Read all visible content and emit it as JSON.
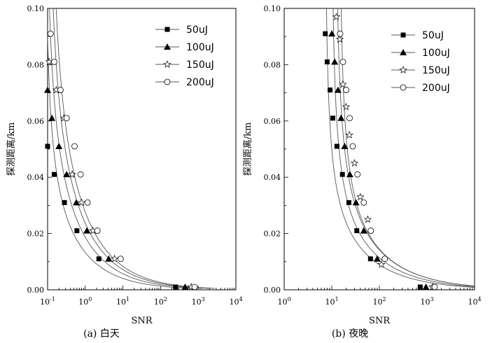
{
  "chart_data": [
    {
      "type": "scatter",
      "caption": "(a) 白天",
      "xlabel": "SNR",
      "ylabel": "探测距离/km",
      "xscale": "log",
      "xlim": [
        0.1,
        10000
      ],
      "ylim": [
        0,
        0.1
      ],
      "xticks": [
        0.1,
        1,
        10,
        100,
        1000,
        10000
      ],
      "xtick_labels": [
        "10-1",
        "100",
        "101",
        "102",
        "103",
        "104"
      ],
      "yticks": [
        0,
        0.02,
        0.04,
        0.06,
        0.08,
        0.1
      ],
      "ytick_labels": [
        "0.00",
        "0.02",
        "0.04",
        "0.06",
        "0.08",
        "0.10"
      ],
      "legend_position": "top-right",
      "series": [
        {
          "name": "50uJ",
          "marker": "square",
          "x": [
            0.1,
            0.15,
            0.28,
            0.6,
            2.3,
            250
          ],
          "y": [
            0.051,
            0.041,
            0.031,
            0.021,
            0.011,
            0.001
          ]
        },
        {
          "name": "100uJ",
          "marker": "triangle",
          "x": [
            0.1,
            0.13,
            0.2,
            0.32,
            0.58,
            1.1,
            4.2,
            450
          ],
          "y": [
            0.071,
            0.061,
            0.051,
            0.041,
            0.031,
            0.021,
            0.011,
            0.001
          ]
        },
        {
          "name": "150uJ",
          "marker": "star",
          "x": [
            0.11,
            0.17,
            0.27,
            0.45,
            0.8,
            1.6,
            6,
            650
          ],
          "y": [
            0.081,
            0.071,
            0.061,
            0.041,
            0.031,
            0.021,
            0.011,
            0.001
          ]
        },
        {
          "name": "200uJ",
          "marker": "circle",
          "x": [
            0.12,
            0.15,
            0.22,
            0.32,
            0.52,
            0.75,
            1.15,
            2.1,
            8.7,
            800
          ],
          "y": [
            0.091,
            0.081,
            0.071,
            0.061,
            0.051,
            0.041,
            0.031,
            0.021,
            0.011,
            0.001
          ]
        }
      ],
      "curve_asymptote": [
        0.08,
        0.08,
        0.09,
        0.1
      ]
    },
    {
      "type": "scatter",
      "caption": "(b) 夜晚",
      "xlabel": "SNR",
      "ylabel": "探测距离/km",
      "xscale": "log",
      "xlim": [
        1,
        10000
      ],
      "ylim": [
        0,
        0.1
      ],
      "xticks": [
        1,
        10,
        100,
        1000,
        10000
      ],
      "xtick_labels": [
        "100",
        "101",
        "102",
        "103",
        "104"
      ],
      "yticks": [
        0,
        0.02,
        0.04,
        0.06,
        0.08,
        0.1
      ],
      "ytick_labels": [
        "0.00",
        "0.02",
        "0.04",
        "0.06",
        "0.08",
        "0.10"
      ],
      "legend_position": "top-right",
      "series": [
        {
          "name": "50uJ",
          "marker": "square",
          "x": [
            7.3,
            8,
            9.2,
            10.5,
            12.8,
            16.7,
            22.8,
            33.5,
            65,
            720
          ],
          "y": [
            0.091,
            0.081,
            0.071,
            0.061,
            0.051,
            0.041,
            0.031,
            0.021,
            0.011,
            0.001
          ]
        },
        {
          "name": "100uJ",
          "marker": "triangle",
          "x": [
            10,
            11.5,
            13.5,
            15.7,
            18.6,
            24,
            32.3,
            47,
            90,
            950
          ],
          "y": [
            0.091,
            0.081,
            0.071,
            0.061,
            0.051,
            0.041,
            0.031,
            0.021,
            0.011,
            0.001
          ]
        },
        {
          "name": "150uJ",
          "marker": "star",
          "x": [
            12.5,
            14.7,
            17.1,
            20,
            23.4,
            30,
            39.7,
            57,
            110,
            1300
          ],
          "y": [
            0.097,
            0.089,
            0.073,
            0.065,
            0.055,
            0.045,
            0.033,
            0.025,
            0.009,
            0.001
          ]
        },
        {
          "name": "200uJ",
          "marker": "circle",
          "x": [
            15,
            17.2,
            20.1,
            23.7,
            27.5,
            34.6,
            47,
            66,
            130,
            1450
          ],
          "y": [
            0.091,
            0.081,
            0.071,
            0.061,
            0.051,
            0.041,
            0.031,
            0.021,
            0.011,
            0.001
          ]
        }
      ],
      "curve_asymptote": [
        7,
        9.5,
        11.5,
        14
      ]
    }
  ]
}
